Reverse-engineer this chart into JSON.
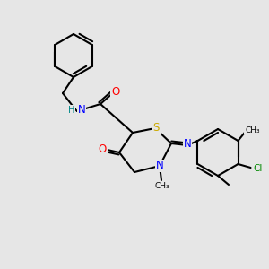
{
  "bg_color": "#e6e6e6",
  "bond_color": "#000000",
  "atom_colors": {
    "N": "#0000ff",
    "O": "#ff0000",
    "S": "#ccaa00",
    "Cl": "#008800",
    "H": "#008888",
    "C": "#000000"
  },
  "lw": 1.5,
  "fig_size": [
    3.0,
    3.0
  ],
  "dpi": 100,
  "fs": 8.5,
  "fs_small": 7.0
}
